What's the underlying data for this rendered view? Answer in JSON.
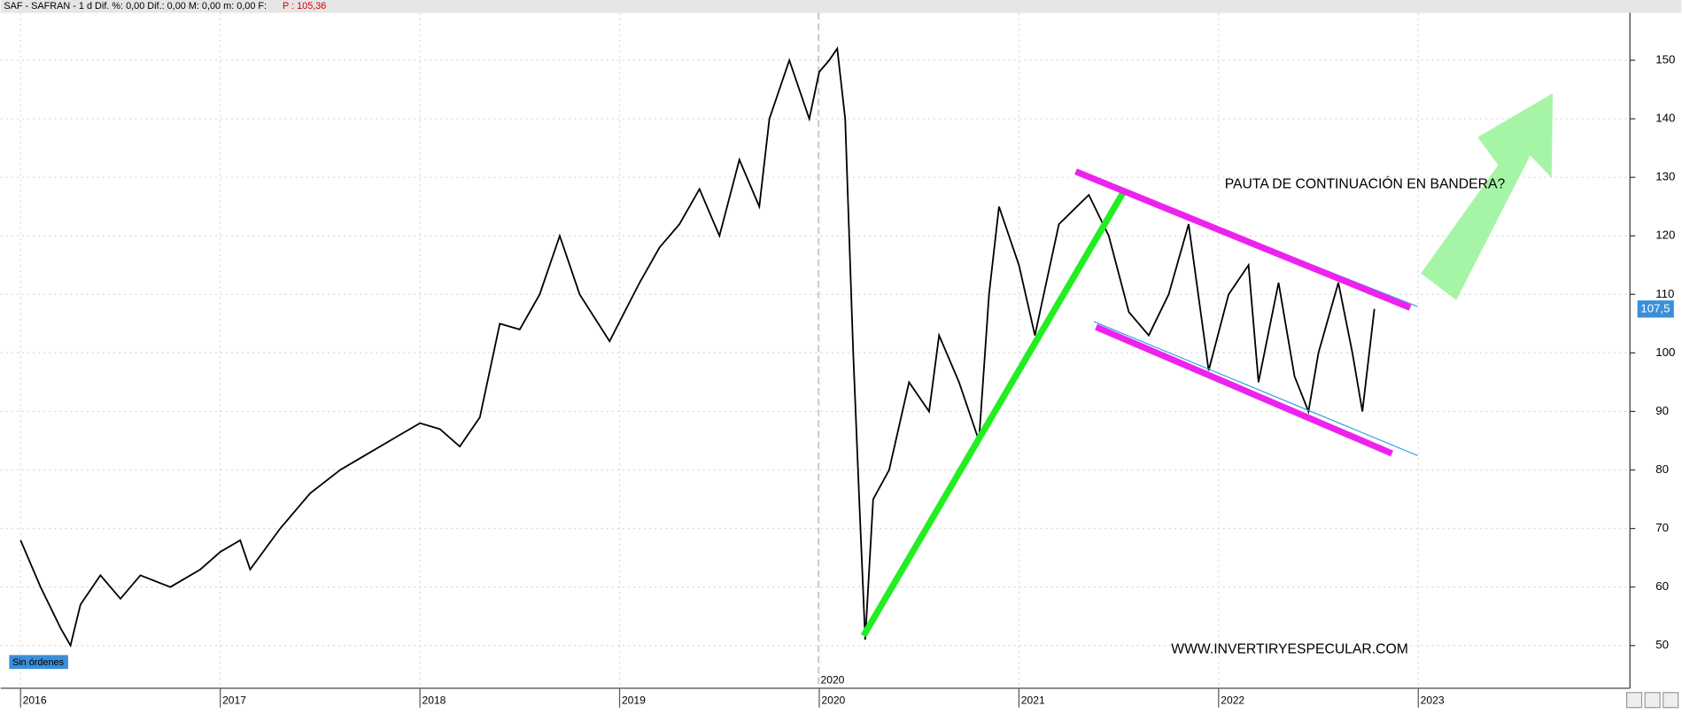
{
  "header": {
    "instrument": "SAF - SAFRAN -  1 d  Dif. %: 0,00  Dif.: 0,00  M: 0,00  m: 0,00  F:",
    "price": "P : 105,36"
  },
  "chart_data": {
    "type": "line",
    "annotations": {
      "pattern": "PAUTA DE CONTINUACIÓN EN BANDERA?",
      "website": "WWW.INVERTIRYESPECULAR.COM",
      "orders": "Sin órdenes",
      "last_price": {
        "value": 107.5,
        "label": "107,5"
      }
    },
    "x": [
      2016.0,
      2016.1,
      2016.2,
      2016.25,
      2016.3,
      2016.4,
      2016.5,
      2016.6,
      2016.75,
      2016.9,
      2017.0,
      2017.1,
      2017.15,
      2017.3,
      2017.45,
      2017.6,
      2017.75,
      2017.9,
      2018.0,
      2018.1,
      2018.2,
      2018.3,
      2018.4,
      2018.5,
      2018.6,
      2018.7,
      2018.8,
      2018.95,
      2019.1,
      2019.2,
      2019.3,
      2019.4,
      2019.5,
      2019.6,
      2019.7,
      2019.75,
      2019.85,
      2019.95,
      2020.0,
      2020.05,
      2020.09,
      2020.13,
      2020.17,
      2020.2,
      2020.23,
      2020.27,
      2020.35,
      2020.45,
      2020.55,
      2020.6,
      2020.7,
      2020.8,
      2020.85,
      2020.9,
      2021.0,
      2021.08,
      2021.2,
      2021.35,
      2021.45,
      2021.55,
      2021.65,
      2021.75,
      2021.85,
      2021.95,
      2022.05,
      2022.15,
      2022.2,
      2022.3,
      2022.38,
      2022.45,
      2022.5,
      2022.6,
      2022.67,
      2022.72,
      2022.78
    ],
    "series": [
      {
        "name": "SAF",
        "color": "#000000",
        "values": [
          68,
          60,
          53,
          50,
          57,
          62,
          58,
          62,
          60,
          63,
          66,
          68,
          63,
          70,
          76,
          80,
          83,
          86,
          88,
          87,
          84,
          89,
          105,
          104,
          110,
          120,
          110,
          102,
          112,
          118,
          122,
          128,
          120,
          133,
          125,
          140,
          150,
          140,
          148,
          150,
          152,
          140,
          100,
          75,
          51,
          75,
          80,
          95,
          90,
          103,
          95,
          85,
          110,
          125,
          115,
          103,
          122,
          127,
          120,
          107,
          103,
          110,
          122,
          97,
          110,
          115,
          95,
          112,
          96,
          90,
          100,
          112,
          100,
          90,
          107.5
        ]
      }
    ],
    "xlim": [
      2015.9,
      2024.06
    ],
    "ylim": [
      42.7,
      158.1
    ],
    "xticks": [
      2016,
      2017,
      2018,
      2019,
      2020,
      2021,
      2022,
      2023
    ],
    "yticks": [
      50,
      60,
      70,
      80,
      90,
      100,
      110,
      120,
      130,
      140,
      150
    ],
    "grid": true
  }
}
